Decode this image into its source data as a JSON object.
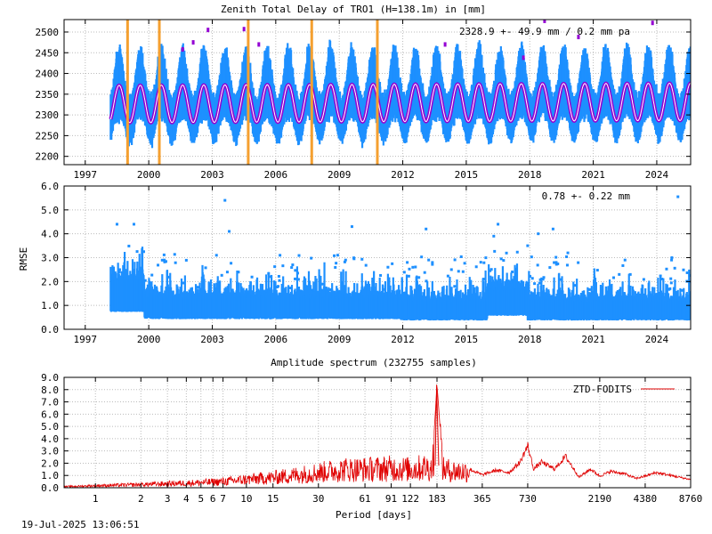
{
  "footer_timestamp": "19-Jul-2025 13:06:51",
  "colors": {
    "measurement": "#1e90ff",
    "model": "#9400d3",
    "model_core": "#ffffff",
    "event_marker": "#f5a030",
    "spectrum": "#e00000",
    "grid": "#bbbbbb",
    "axis": "#000000"
  },
  "chart_data": [
    {
      "type": "scatter",
      "id": "ztd",
      "title": "Zenith Total Delay of TRO1 (H=138.1m) in [mm]",
      "annotation": "2328.9 +-  49.9 mm /  0.2 mm pa",
      "xlabel": "",
      "ylabel": "",
      "xlim": [
        1996.0,
        2025.6
      ],
      "ylim": [
        2180,
        2530
      ],
      "x_ticks": [
        "1997",
        "2000",
        "2003",
        "2006",
        "2009",
        "2012",
        "2015",
        "2018",
        "2021",
        "2024"
      ],
      "y_ticks": [
        "2200",
        "2250",
        "2300",
        "2350",
        "2400",
        "2450",
        "2500"
      ],
      "grid": true,
      "data_start": 1998.2,
      "data_end": 2025.6,
      "mean": 2328.9,
      "std": 49.9,
      "trend_per_year": 0.2,
      "seasonal_amplitude": 45,
      "seasonal_peak_fraction": 0.6,
      "series": [
        {
          "role": "measurement"
        },
        {
          "role": "model"
        }
      ],
      "event_markers": [
        1999.0,
        2000.5,
        2004.7,
        2007.7,
        2010.8
      ],
      "outliers": [
        {
          "x": 2002.8,
          "y": 2505
        },
        {
          "x": 2004.5,
          "y": 2507
        },
        {
          "x": 2002.1,
          "y": 2475
        },
        {
          "x": 2005.2,
          "y": 2470
        },
        {
          "x": 2017.7,
          "y": 2438
        },
        {
          "x": 2018.7,
          "y": 2527
        },
        {
          "x": 2014.0,
          "y": 2470
        },
        {
          "x": 2020.3,
          "y": 2488
        },
        {
          "x": 2023.8,
          "y": 2522
        },
        {
          "x": 2001.6,
          "y": 2458
        }
      ]
    },
    {
      "type": "scatter",
      "id": "rmse",
      "title": "",
      "annotation": "0.78 +-  0.22 mm",
      "xlabel": "",
      "ylabel": "RMSE",
      "xlim": [
        1996.0,
        2025.6
      ],
      "ylim": [
        0.0,
        6.0
      ],
      "x_ticks": [
        "1997",
        "2000",
        "2003",
        "2006",
        "2009",
        "2012",
        "2015",
        "2018",
        "2021",
        "2024"
      ],
      "y_ticks": [
        "0.0",
        "1.0",
        "2.0",
        "3.0",
        "4.0",
        "5.0",
        "6.0"
      ],
      "grid": true,
      "mean": 0.78,
      "std": 0.22,
      "base_segments": [
        {
          "x0": 1998.2,
          "x1": 1999.8,
          "y": 1.5
        },
        {
          "x0": 1999.8,
          "x1": 2011.9,
          "y": 0.95
        },
        {
          "x0": 2011.9,
          "x1": 2016.0,
          "y": 0.85
        },
        {
          "x0": 2016.0,
          "x1": 2017.9,
          "y": 1.2
        },
        {
          "x0": 2017.9,
          "x1": 2025.6,
          "y": 0.85
        }
      ],
      "outliers": [
        {
          "x": 2003.6,
          "y": 5.4
        },
        {
          "x": 2025.0,
          "y": 5.55
        },
        {
          "x": 1998.5,
          "y": 4.4
        },
        {
          "x": 1999.3,
          "y": 4.4
        },
        {
          "x": 2003.8,
          "y": 4.1
        },
        {
          "x": 2009.6,
          "y": 4.3
        },
        {
          "x": 2013.1,
          "y": 4.2
        },
        {
          "x": 2016.5,
          "y": 4.4
        },
        {
          "x": 2018.4,
          "y": 4.0
        },
        {
          "x": 2019.1,
          "y": 4.2
        },
        {
          "x": 2019.8,
          "y": 3.2
        },
        {
          "x": 2024.7,
          "y": 2.9
        },
        {
          "x": 2011.3,
          "y": 2.6
        },
        {
          "x": 2013.4,
          "y": 2.8
        },
        {
          "x": 2014.3,
          "y": 2.5
        },
        {
          "x": 2016.3,
          "y": 3.9
        },
        {
          "x": 2017.9,
          "y": 3.5
        },
        {
          "x": 2003.2,
          "y": 3.1
        },
        {
          "x": 2009.3,
          "y": 2.9
        },
        {
          "x": 2022.5,
          "y": 2.9
        },
        {
          "x": 2004.2,
          "y": 2.4
        },
        {
          "x": 2006.8,
          "y": 2.7
        }
      ]
    },
    {
      "type": "line",
      "id": "spectrum",
      "title": "Amplitude spectrum (232755 samples)",
      "xlabel": "Period [days]",
      "ylabel": "",
      "x_scale": "log",
      "xlim": [
        0.62,
        8760
      ],
      "ylim": [
        0.0,
        9.0
      ],
      "x_ticks": [
        1,
        2,
        3,
        4,
        5,
        6,
        7,
        10,
        15,
        30,
        61,
        91,
        122,
        183,
        365,
        730,
        2190,
        4380,
        8760
      ],
      "y_ticks": [
        "0.0",
        "1.0",
        "2.0",
        "3.0",
        "4.0",
        "5.0",
        "6.0",
        "7.0",
        "8.0",
        "9.0"
      ],
      "grid": true,
      "legend": "top-right",
      "series": [
        {
          "name": "ZTD-FODITS",
          "envelope": {
            "note": ""
          },
          "x": [
            0.62,
            1,
            2,
            3,
            5,
            7,
            10,
            15,
            20,
            30,
            45,
            61,
            91,
            122,
            150,
            170,
            183,
            200,
            250,
            300,
            365,
            450,
            550,
            650,
            730,
            800,
            900,
            1100,
            1300,
            1600,
            1900,
            2190,
            2600,
            3200,
            3800,
            4380,
            5200,
            6200,
            7400,
            8760
          ],
          "y": [
            0.1,
            0.2,
            0.3,
            0.4,
            0.5,
            0.6,
            0.8,
            1.0,
            1.2,
            1.5,
            1.8,
            1.8,
            1.9,
            1.8,
            2.0,
            1.9,
            8.4,
            1.8,
            1.6,
            1.6,
            1.1,
            1.5,
            1.3,
            2.2,
            3.6,
            1.6,
            2.2,
            1.6,
            2.7,
            0.9,
            1.6,
            1.0,
            1.4,
            1.2,
            0.8,
            1.0,
            1.3,
            1.1,
            0.9,
            0.7
          ]
        }
      ]
    }
  ]
}
